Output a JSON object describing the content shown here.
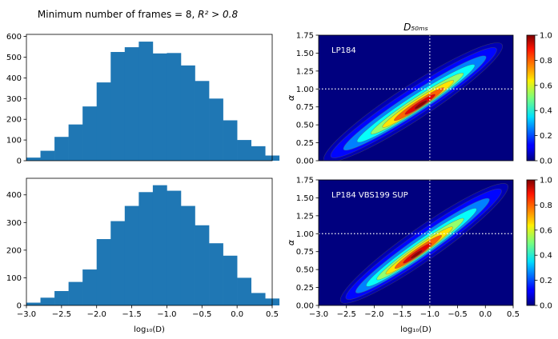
{
  "figure": {
    "suptitle_prefix": "Minimum number of frames = 8, ",
    "suptitle_math": "R² > 0.8"
  },
  "chart_data": [
    {
      "type": "bar",
      "panel": "top-left histogram",
      "bin_edges": [
        -3.0,
        -2.8,
        -2.6,
        -2.4,
        -2.2,
        -2.0,
        -1.8,
        -1.6,
        -1.4,
        -1.2,
        -1.0,
        -0.8,
        -0.6,
        -0.4,
        -0.2,
        0.0,
        0.2,
        0.4
      ],
      "values": [
        15,
        48,
        115,
        175,
        262,
        378,
        525,
        548,
        575,
        518,
        520,
        460,
        385,
        300,
        195,
        100,
        70,
        25
      ],
      "xlim": [
        -3.0,
        0.5
      ],
      "ylim": [
        0,
        610
      ],
      "yticks": [
        0,
        100,
        200,
        300,
        400,
        500,
        600
      ],
      "xlabel": "",
      "ylabel": "",
      "color": "#1f77b4"
    },
    {
      "type": "bar",
      "panel": "bottom-left histogram",
      "bin_edges": [
        -3.0,
        -2.8,
        -2.6,
        -2.4,
        -2.2,
        -2.0,
        -1.8,
        -1.6,
        -1.4,
        -1.2,
        -1.0,
        -0.8,
        -0.6,
        -0.4,
        -0.2,
        0.0,
        0.2,
        0.4
      ],
      "values": [
        10,
        28,
        52,
        85,
        130,
        240,
        305,
        360,
        410,
        435,
        415,
        360,
        290,
        225,
        180,
        100,
        45,
        25
      ],
      "xlim": [
        -3.0,
        0.5
      ],
      "ylim": [
        0,
        460
      ],
      "yticks": [
        0,
        100,
        200,
        300,
        400
      ],
      "xticks": [
        -3.0,
        -2.5,
        -2.0,
        -1.5,
        -1.0,
        -0.5,
        0.0,
        0.5
      ],
      "xtick_labels": [
        "−3.0",
        "−2.5",
        "−2.0",
        "−1.5",
        "−1.0",
        "−0.5",
        "0.0",
        "0.5"
      ],
      "xlabel": "log₁₀(D)",
      "ylabel": "",
      "color": "#1f77b4"
    },
    {
      "type": "heatmap",
      "panel": "top-right density",
      "title": "D₅₀ₘₛ",
      "annotation": "LP184",
      "xlim": [
        -3.0,
        0.5
      ],
      "ylim": [
        0.0,
        1.75
      ],
      "yticks": [
        0.0,
        0.25,
        0.5,
        0.75,
        1.0,
        1.25,
        1.5,
        1.75
      ],
      "ytick_labels": [
        "0.00",
        "0.25",
        "0.50",
        "0.75",
        "1.00",
        "1.25",
        "1.50",
        "1.75"
      ],
      "ylabel": "α",
      "xlabel": "",
      "ridge": {
        "x": [
          -2.9,
          0.3
        ],
        "y": [
          0.0,
          1.62
        ]
      },
      "peak": {
        "x": -1.15,
        "y": 0.78
      },
      "reference_lines": {
        "x": -1.0,
        "y": 1.0
      },
      "colorbar": {
        "range": [
          0.0,
          1.0
        ],
        "ticks": [
          0.0,
          0.2,
          0.4,
          0.6,
          0.8,
          1.0
        ],
        "tick_labels": [
          "0.0",
          "0.2",
          "0.4",
          "0.6",
          "0.8",
          "1.0"
        ],
        "colormap": "jet"
      }
    },
    {
      "type": "heatmap",
      "panel": "bottom-right density",
      "annotation": "LP184 VBS199 SUP",
      "xlim": [
        -3.0,
        0.5
      ],
      "ylim": [
        0.0,
        1.75
      ],
      "yticks": [
        0.0,
        0.25,
        0.5,
        0.75,
        1.0,
        1.25,
        1.5,
        1.75
      ],
      "ytick_labels": [
        "0.00",
        "0.25",
        "0.50",
        "0.75",
        "1.00",
        "1.25",
        "1.50",
        "1.75"
      ],
      "xticks": [
        -3.0,
        -2.5,
        -2.0,
        -1.5,
        -1.0,
        -0.5,
        0.0,
        0.5
      ],
      "xtick_labels": [
        "−3.0",
        "−2.5",
        "−2.0",
        "−1.5",
        "−1.0",
        "−0.5",
        "0.0",
        "0.5"
      ],
      "ylabel": "α",
      "xlabel": "log₁₀(D)",
      "ridge": {
        "x": [
          -2.6,
          0.4
        ],
        "y": [
          0.05,
          1.68
        ]
      },
      "peak": {
        "x": -1.25,
        "y": 0.7
      },
      "reference_lines": {
        "x": -1.0,
        "y": 1.0
      },
      "colorbar": {
        "range": [
          0.0,
          1.0
        ],
        "ticks": [
          0.0,
          0.2,
          0.4,
          0.6,
          0.8,
          1.0
        ],
        "tick_labels": [
          "0.0",
          "0.2",
          "0.4",
          "0.6",
          "0.8",
          "1.0"
        ],
        "colormap": "jet"
      }
    }
  ]
}
